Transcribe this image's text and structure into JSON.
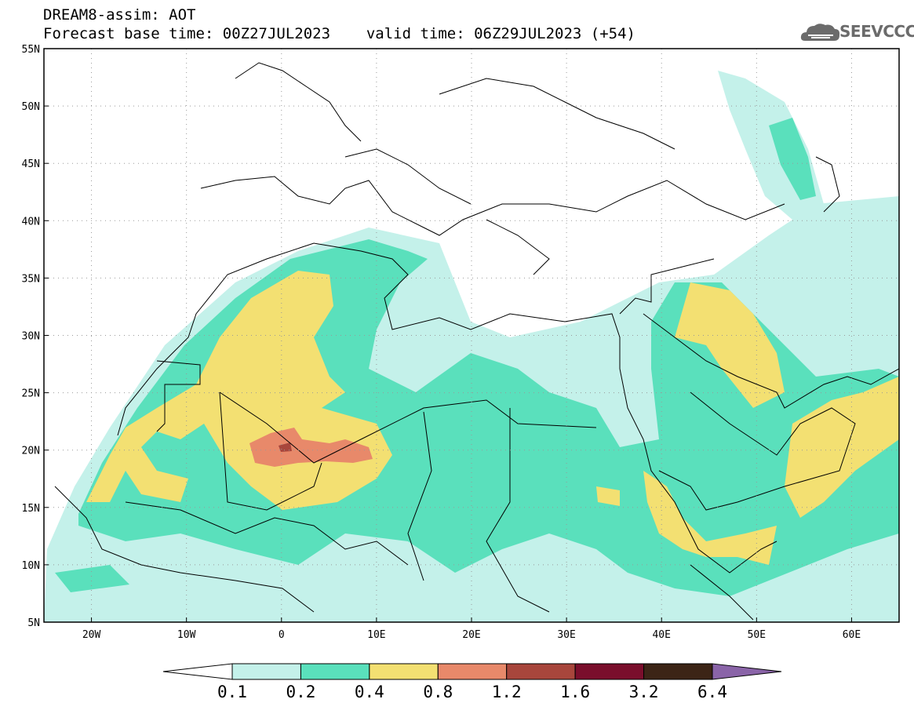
{
  "header": {
    "title_line1": "DREAM8-assim: AOT",
    "base_time_label": "Forecast base time: 00Z27JUL2023",
    "valid_time_label": "valid time: 06Z29JUL2023 (+54)"
  },
  "logo": {
    "text": "SEEVCCC",
    "icon": "cloud-icon"
  },
  "map": {
    "lon_range": [
      -25,
      65
    ],
    "lat_range": [
      5,
      55
    ],
    "lon_ticks": [
      {
        "value": -20,
        "label": "20W"
      },
      {
        "value": -10,
        "label": "10W"
      },
      {
        "value": 0,
        "label": "0"
      },
      {
        "value": 10,
        "label": "10E"
      },
      {
        "value": 20,
        "label": "20E"
      },
      {
        "value": 30,
        "label": "30E"
      },
      {
        "value": 40,
        "label": "40E"
      },
      {
        "value": 50,
        "label": "50E"
      },
      {
        "value": 60,
        "label": "60E"
      }
    ],
    "lat_ticks": [
      {
        "value": 55,
        "label": "55N"
      },
      {
        "value": 50,
        "label": "50N"
      },
      {
        "value": 45,
        "label": "45N"
      },
      {
        "value": 40,
        "label": "40N"
      },
      {
        "value": 35,
        "label": "35N"
      },
      {
        "value": 30,
        "label": "30N"
      },
      {
        "value": 25,
        "label": "25N"
      },
      {
        "value": 20,
        "label": "20N"
      },
      {
        "value": 15,
        "label": "15N"
      },
      {
        "value": 10,
        "label": "10N"
      },
      {
        "value": 5,
        "label": "5N"
      }
    ],
    "grid": "dotted"
  },
  "colorbar": {
    "levels": [
      "0.1",
      "0.2",
      "0.4",
      "0.8",
      "1.2",
      "1.6",
      "3.2",
      "6.4"
    ],
    "colors": [
      "#ffffff",
      "#c4f1ea",
      "#5ae0bc",
      "#f3e072",
      "#e8896a",
      "#a8463c",
      "#7a0e2c",
      "#3c2416",
      "#8a64a8"
    ]
  }
}
